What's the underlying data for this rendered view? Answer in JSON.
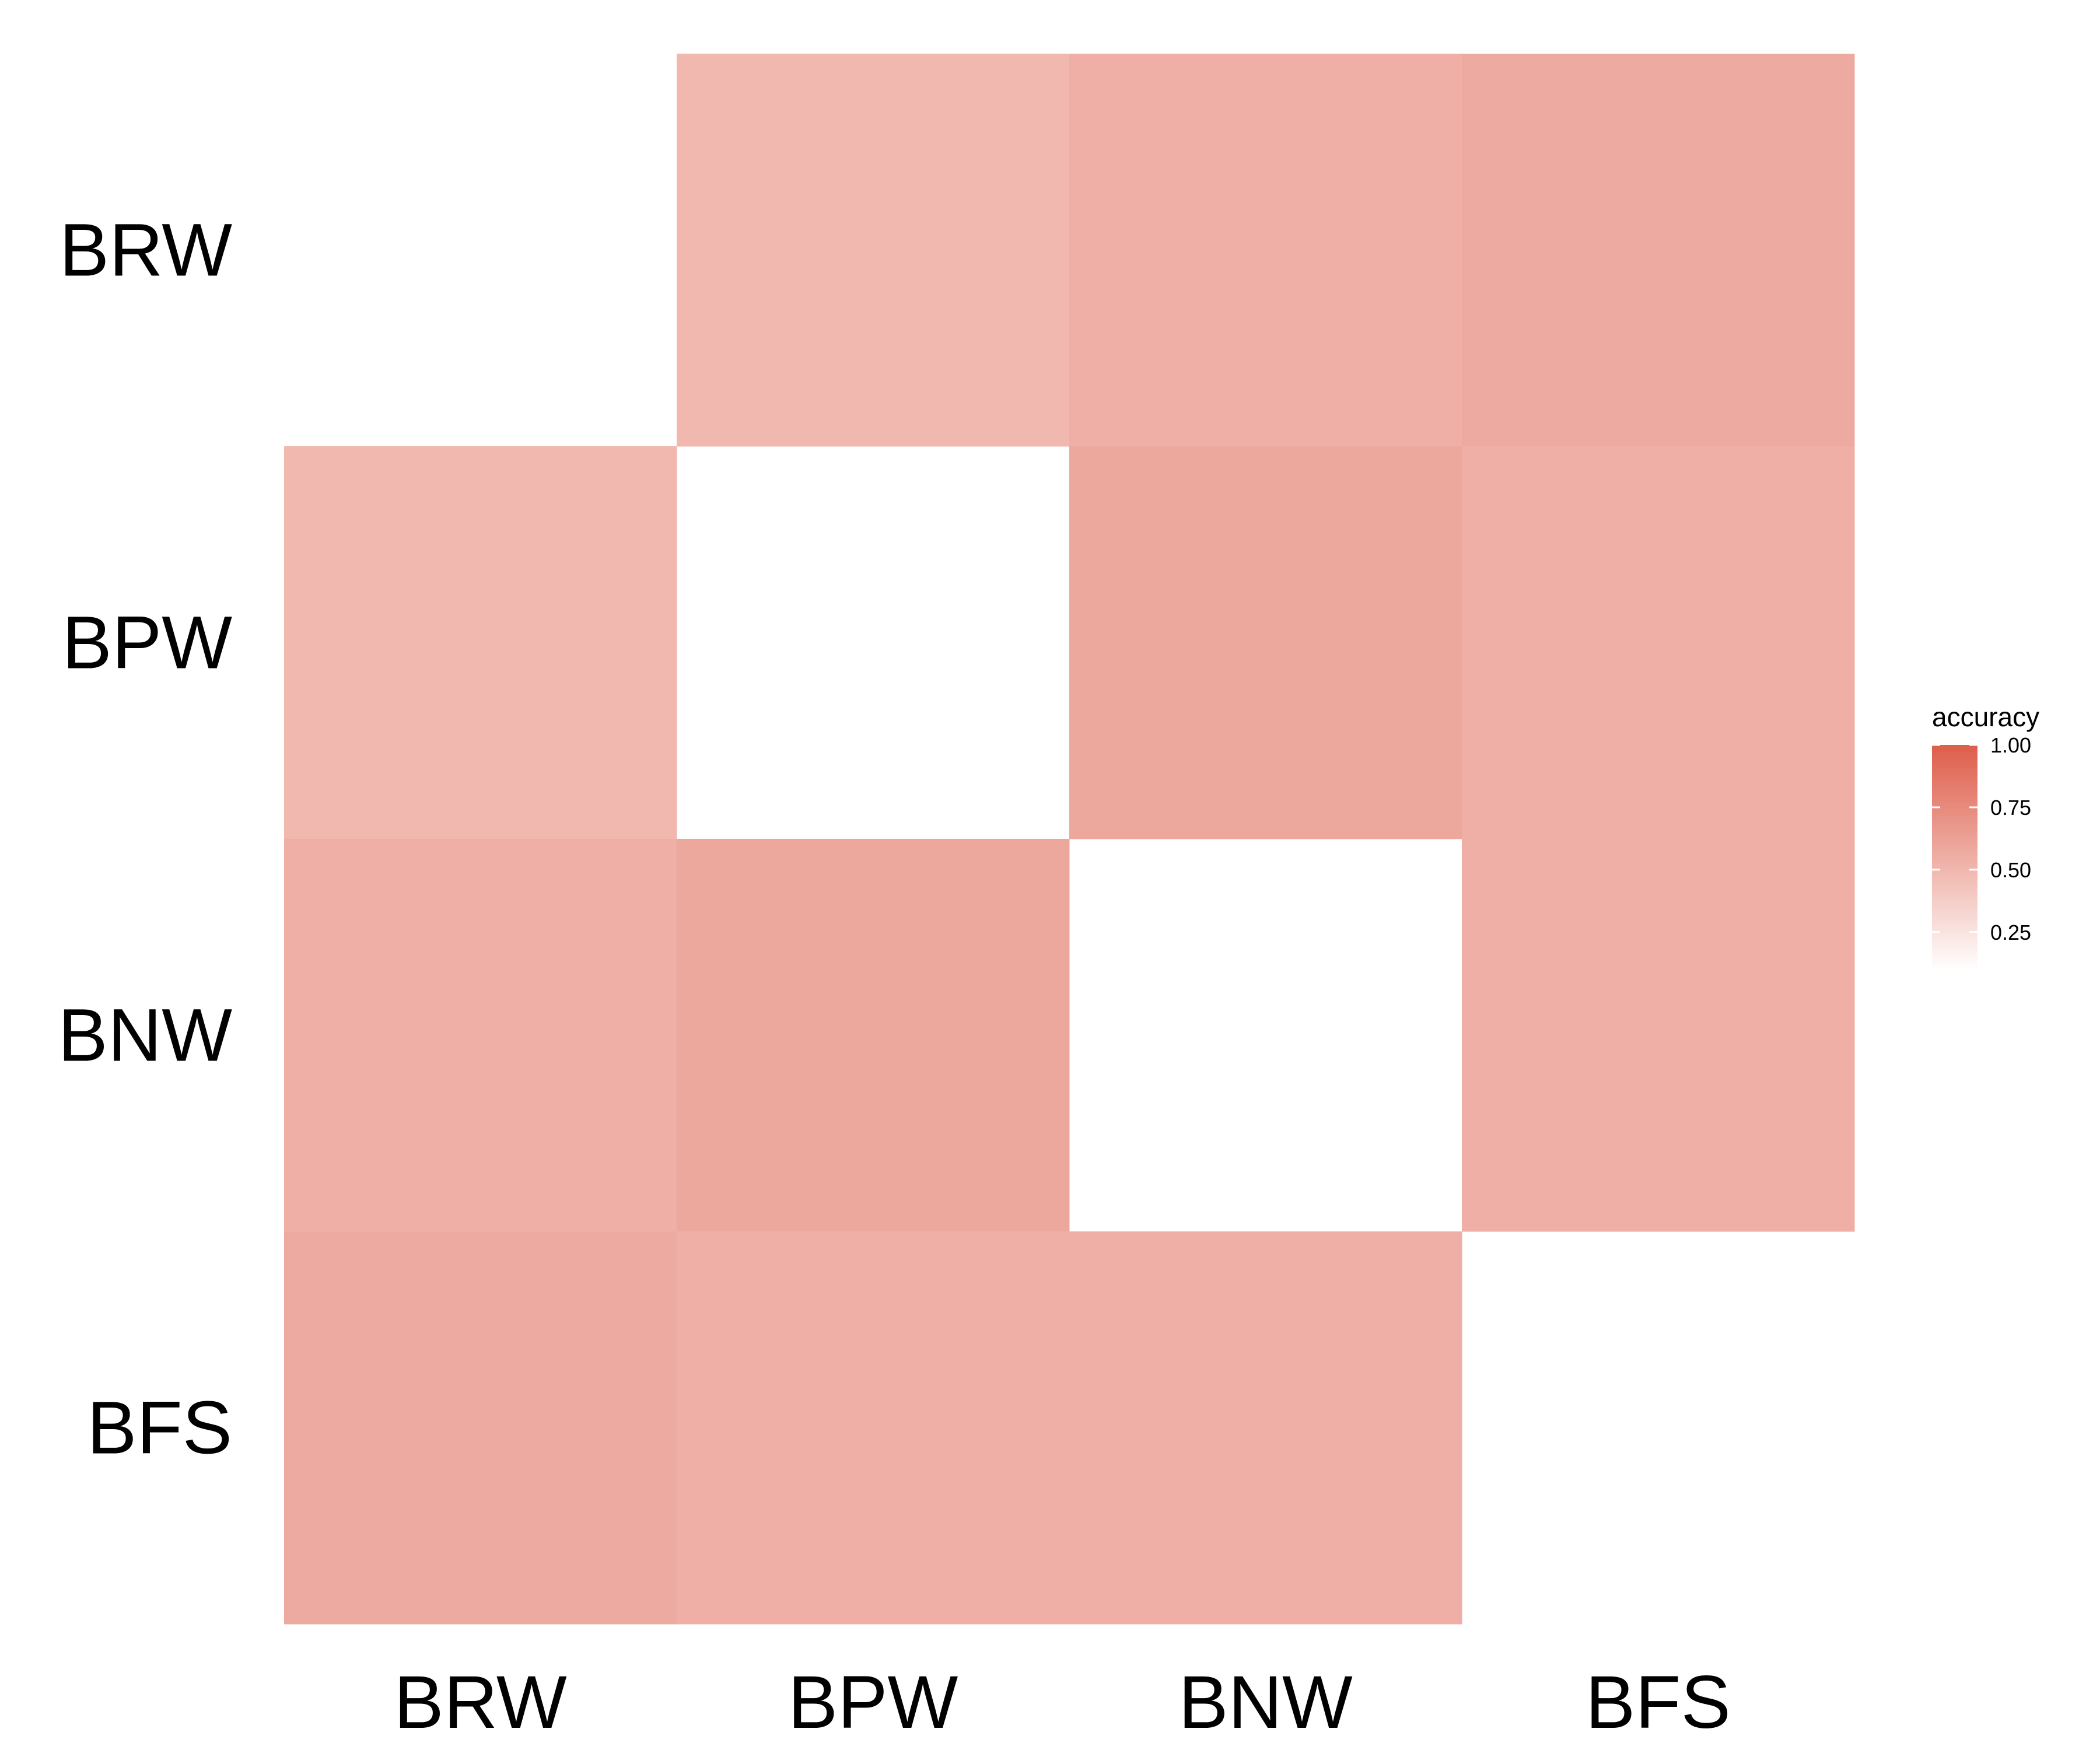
{
  "chart_data": {
    "type": "heatmap",
    "title": "",
    "xlabel": "",
    "ylabel": "",
    "x_categories": [
      "BRW",
      "BPW",
      "BNW",
      "BFS"
    ],
    "y_categories": [
      "BRW",
      "BPW",
      "BNW",
      "BFS"
    ],
    "cells": [
      {
        "row": "BRW",
        "col": "BPW",
        "value": 0.5
      },
      {
        "row": "BRW",
        "col": "BNW",
        "value": 0.55
      },
      {
        "row": "BRW",
        "col": "BFS",
        "value": 0.58
      },
      {
        "row": "BPW",
        "col": "BRW",
        "value": 0.5
      },
      {
        "row": "BPW",
        "col": "BNW",
        "value": 0.59
      },
      {
        "row": "BPW",
        "col": "BFS",
        "value": 0.55
      },
      {
        "row": "BNW",
        "col": "BRW",
        "value": 0.55
      },
      {
        "row": "BNW",
        "col": "BPW",
        "value": 0.59
      },
      {
        "row": "BNW",
        "col": "BFS",
        "value": 0.55
      },
      {
        "row": "BFS",
        "col": "BRW",
        "value": 0.58
      },
      {
        "row": "BFS",
        "col": "BPW",
        "value": 0.55
      },
      {
        "row": "BFS",
        "col": "BNW",
        "value": 0.55
      }
    ],
    "legend": {
      "title": "accuracy",
      "position": "right",
      "range": [
        0.1,
        1.0
      ],
      "ticks": [
        {
          "value": 1.0,
          "label": "1.00"
        },
        {
          "value": 0.75,
          "label": "0.75"
        },
        {
          "value": 0.5,
          "label": "0.50"
        },
        {
          "value": 0.25,
          "label": "0.25"
        }
      ],
      "low_color": "#ffffff",
      "high_color": "#de5f4c"
    },
    "grid": false
  }
}
